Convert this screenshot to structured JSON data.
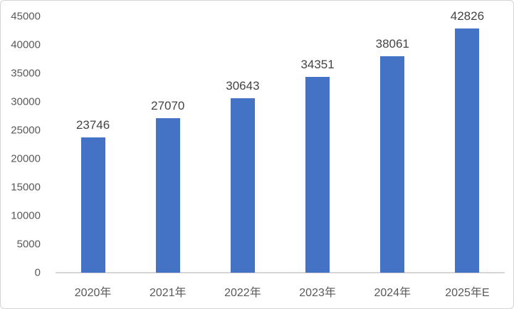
{
  "chart_data": {
    "type": "bar",
    "categories": [
      "2020年",
      "2021年",
      "2022年",
      "2023年",
      "2024年",
      "2025年E"
    ],
    "values": [
      23746,
      27070,
      30643,
      34351,
      38061,
      42826
    ],
    "data_labels": [
      "23746",
      "27070",
      "30643",
      "34351",
      "38061",
      "42826"
    ],
    "title": "",
    "xlabel": "",
    "ylabel": "",
    "ylim": [
      0,
      45000
    ],
    "ytick_step": 5000,
    "ytick_labels": [
      "0",
      "5000",
      "10000",
      "15000",
      "20000",
      "25000",
      "30000",
      "35000",
      "40000",
      "45000"
    ],
    "grid": false,
    "legend": "none",
    "bar_color": "#4472c4",
    "axis_line_color": "#d6d6d6",
    "axis_text_color": "#595959",
    "data_label_color": "#444444"
  }
}
